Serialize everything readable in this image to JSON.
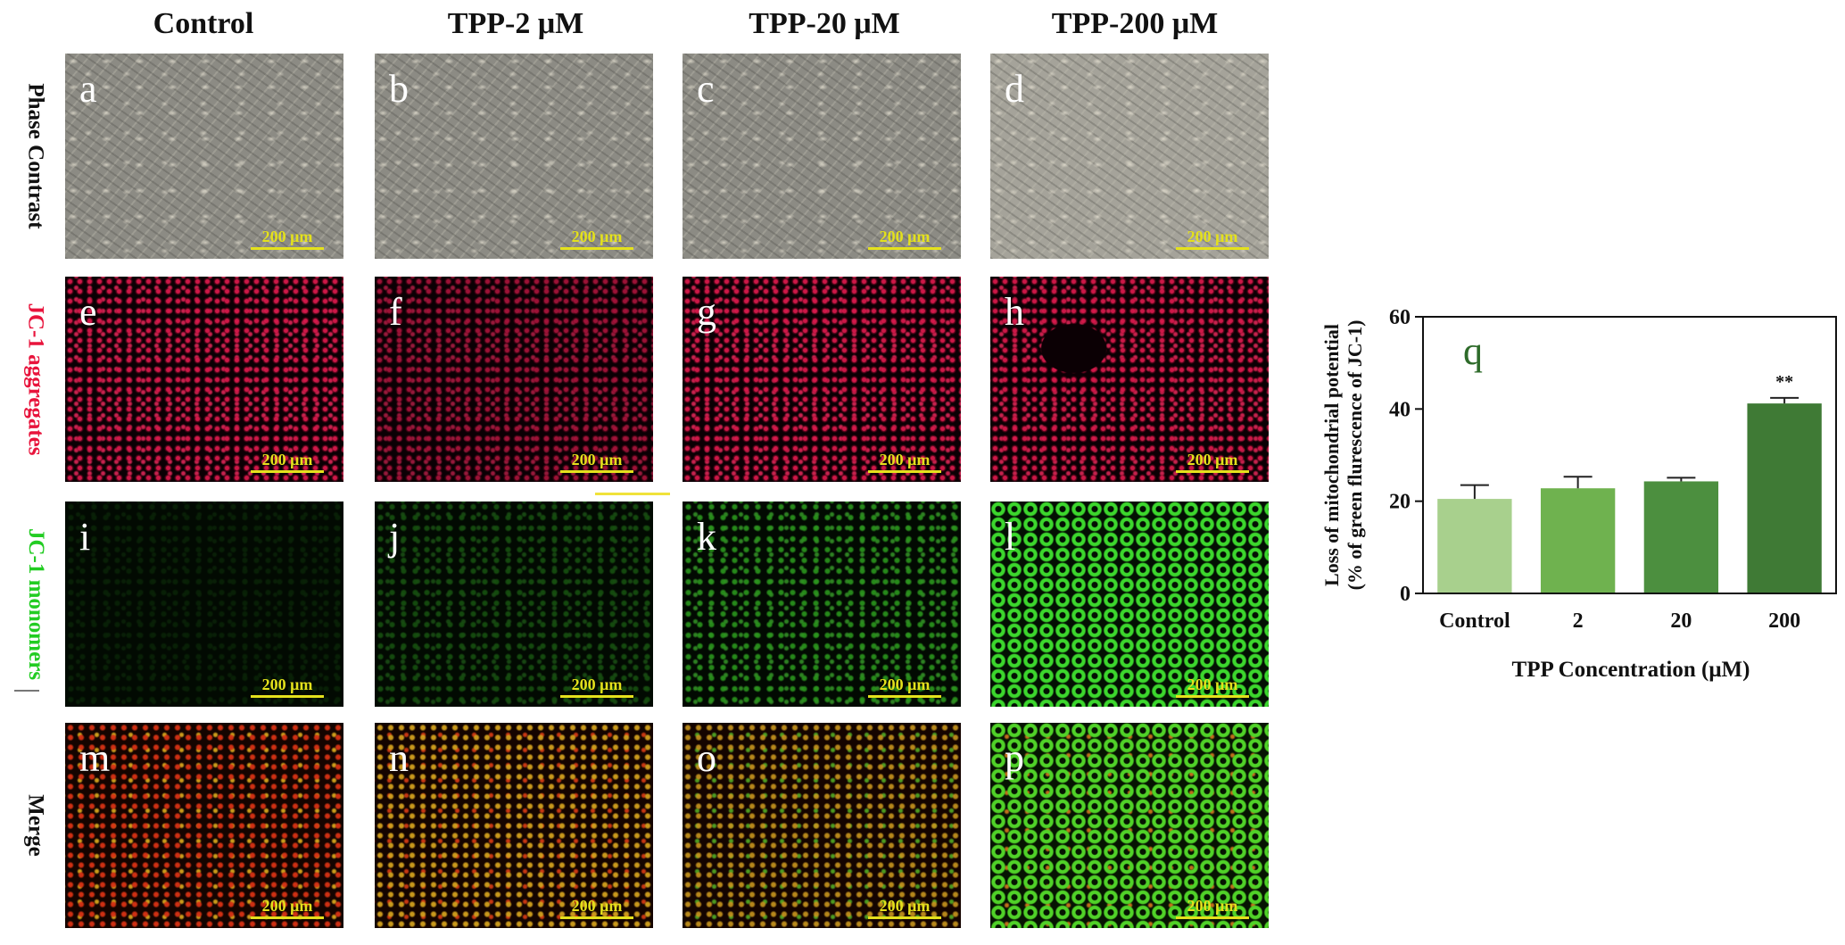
{
  "figure": {
    "columns": [
      "Control",
      "TPP-2 μM",
      "TPP-20 μM",
      "TPP-200 μM"
    ],
    "rows": [
      {
        "label": "Phase Contrast",
        "color": "#111111"
      },
      {
        "label": "JC-1 aggregates",
        "color": "#e8143c"
      },
      {
        "label": "JC-1 monomers",
        "color": "#22cc22"
      },
      {
        "label": "Merge",
        "color": "#111111"
      }
    ],
    "panel_letters": [
      "a",
      "b",
      "c",
      "d",
      "e",
      "f",
      "g",
      "h",
      "i",
      "j",
      "k",
      "l",
      "m",
      "n",
      "o",
      "p"
    ],
    "scale_bar": "200 μm"
  },
  "chart_data": {
    "type": "bar",
    "panel_letter": "q",
    "categories": [
      "Control",
      "2",
      "20",
      "200"
    ],
    "values": [
      20.5,
      22.8,
      24.3,
      41.2
    ],
    "errors": [
      3.0,
      2.5,
      0.8,
      1.2
    ],
    "bar_colors": [
      "#a8d08d",
      "#6fb24f",
      "#4c8f3f",
      "#3f7a35"
    ],
    "significance": [
      "",
      "",
      "",
      "**"
    ],
    "xlabel": "TPP Concentration (μM)",
    "ylabel_line1": "Loss of mitochondrial potential",
    "ylabel_line2": "(% of green flurescence of JC-1)",
    "ylim": [
      0,
      60
    ],
    "yticks": [
      0,
      20,
      40,
      60
    ],
    "grid": false,
    "letter_color": "#2e6b2a"
  }
}
